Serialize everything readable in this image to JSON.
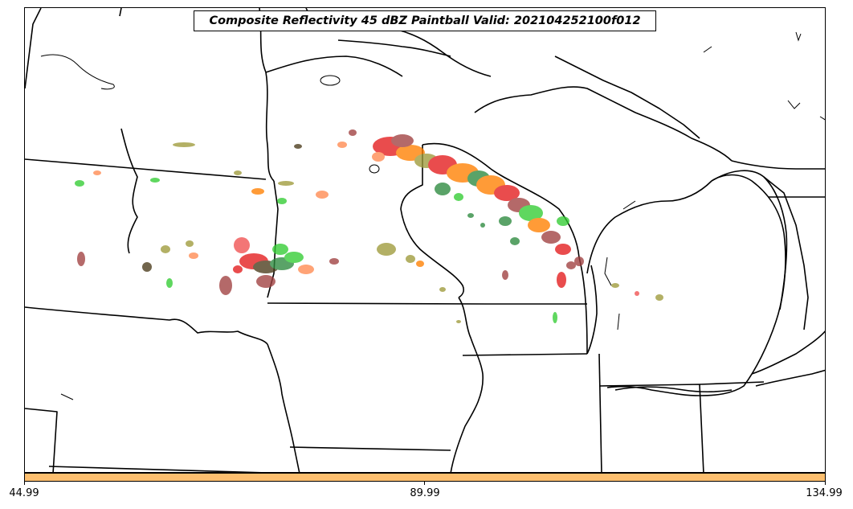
{
  "title": "Composite Reflectivity 45 dBZ Paintball Valid: 202104252100f012",
  "colorbar": {
    "color": "#fdbf6f",
    "tick_labels": [
      "44.99",
      "89.99",
      "134.99"
    ]
  },
  "member_colors": [
    "#e31a1c",
    "#ff7f00",
    "#33cc33",
    "#2d8a3e",
    "#9e9a3a",
    "#a04040",
    "#ff8a50",
    "#f05050",
    "#4a3a1a"
  ]
}
